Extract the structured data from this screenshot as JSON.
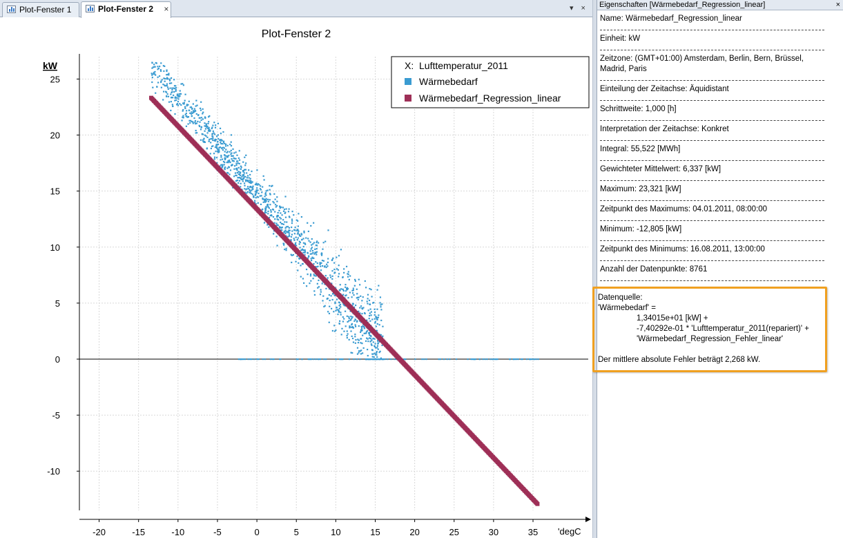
{
  "tabs": [
    {
      "label": "Plot-Fenster 1",
      "active": false
    },
    {
      "label": "Plot-Fenster 2",
      "active": true
    }
  ],
  "tab_close_glyph": "×",
  "tab_controls": "▾ ×",
  "plot_title": "Plot-Fenster 2",
  "legend": {
    "x_prefix": "X:",
    "x_name": "Lufttemperatur_2011",
    "entries": [
      {
        "name": "Wärmebedarf",
        "color": "#3a9bd1"
      },
      {
        "name": "Wärmebedarf_Regression_linear",
        "color": "#9e2f57"
      }
    ]
  },
  "chart_data": {
    "type": "scatter",
    "xlabel": "'degC",
    "ylabel": "kW",
    "xlim": [
      -22.5,
      42
    ],
    "ylim": [
      -13.5,
      27
    ],
    "x_ticks": [
      -20,
      -15,
      -10,
      -5,
      0,
      5,
      10,
      15,
      20,
      25,
      30,
      35
    ],
    "y_ticks": [
      -10,
      -5,
      0,
      5,
      10,
      15,
      20,
      25
    ],
    "x_grid_spacing": 5,
    "y_grid_spacing": 5,
    "grid": true,
    "legend_position": "top-right",
    "series": [
      {
        "name": "Wärmebedarf",
        "color": "#3a9bd1",
        "kind": "scatter-cloud",
        "x_range": [
          -13.5,
          16
        ],
        "y_range": [
          0,
          26.5
        ],
        "points_shown": 8761,
        "cloud_center_line": {
          "intercept": 14.8,
          "slope": -0.85
        },
        "zero_floor_x_range": [
          -3,
          36
        ]
      },
      {
        "name": "Wärmebedarf_Regression_linear",
        "color": "#9e2f57",
        "kind": "line-points",
        "intercept": 13.4015,
        "slope": -0.740292,
        "x_range": [
          -13.4,
          35.6
        ]
      }
    ]
  },
  "props": {
    "header": "Eigenschaften [Wärmebedarf_Regression_linear]",
    "close_glyph": "×",
    "items": [
      "Name: Wärmebedarf_Regression_linear",
      "Einheit: kW",
      "Zeitzone: (GMT+01:00) Amsterdam, Berlin, Bern, Brüssel, Madrid, Paris",
      "Einteilung der Zeitachse: Äquidistant",
      "Schrittweite: 1,000 [h]",
      "Interpretation der Zeitachse: Konkret",
      "Integral: 55,522 [MWh]",
      "Gewichteter Mittelwert: 6,337 [kW]",
      "Maximum: 23,321 [kW]",
      "Zeitpunkt des Maximums: 04.01.2011, 08:00:00",
      "Minimum: -12,805 [kW]",
      "Zeitpunkt des Minimums: 16.08.2011, 13:00:00",
      "Anzahl der Datenpunkte: 8761"
    ],
    "datasource": {
      "title": "Datenquelle:",
      "lhs": "'Wärmebedarf' =",
      "term1": "1,34015e+01 [kW] +",
      "term2": "-7,40292e-01 * 'Lufttemperatur_2011(repariert)' +",
      "term3": "'Wärmebedarf_Regression_Fehler_linear'",
      "note": "Der mittlere absolute Fehler beträgt 2,268 kW."
    }
  }
}
